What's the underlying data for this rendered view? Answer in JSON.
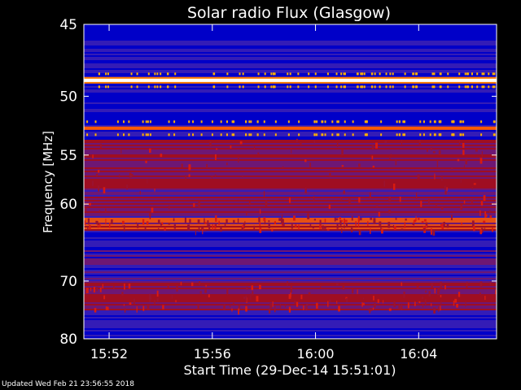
{
  "chart_data": {
    "type": "heatmap",
    "title": "Solar radio Flux (Glasgow)",
    "xlabel": "Start Time (29-Dec-14 15:51:01)",
    "ylabel": "Frequency [MHz]",
    "x_range": [
      "15:51:01",
      "15:51:01 + 16m"
    ],
    "x_ticks": [
      "15:52",
      "15:56",
      "16:00",
      "16:04"
    ],
    "x_tick_minutes": [
      0.98,
      4.98,
      8.98,
      12.98
    ],
    "x_span_minutes": 16,
    "y_scale": "reciprocal",
    "ylim": [
      45,
      80
    ],
    "y_ticks": [
      45,
      50,
      55,
      60,
      70,
      80
    ],
    "colormap": [
      "#0000c8",
      "#3a1fb4",
      "#7a1a6a",
      "#b01010",
      "#ff5a00",
      "#ffd27a",
      "#ffffff"
    ],
    "strong_emission_bands_mhz": [
      {
        "freq": 48.8,
        "intensity": "very-high",
        "note": "bright white line"
      },
      {
        "freq": 52.6,
        "intensity": "high",
        "note": "orange line"
      }
    ],
    "emission_regions_mhz": [
      {
        "from": 53.5,
        "to": 61.5,
        "intensity": "medium"
      },
      {
        "from": 61.5,
        "to": 63.0,
        "intensity": "medium-high"
      },
      {
        "from": 70.0,
        "to": 74.5,
        "intensity": "medium"
      }
    ]
  },
  "footer": {
    "updated": "Updated Wed Feb 21 23:56:55 2018"
  },
  "colors": {
    "background": "#000000",
    "text": "#ffffff"
  }
}
